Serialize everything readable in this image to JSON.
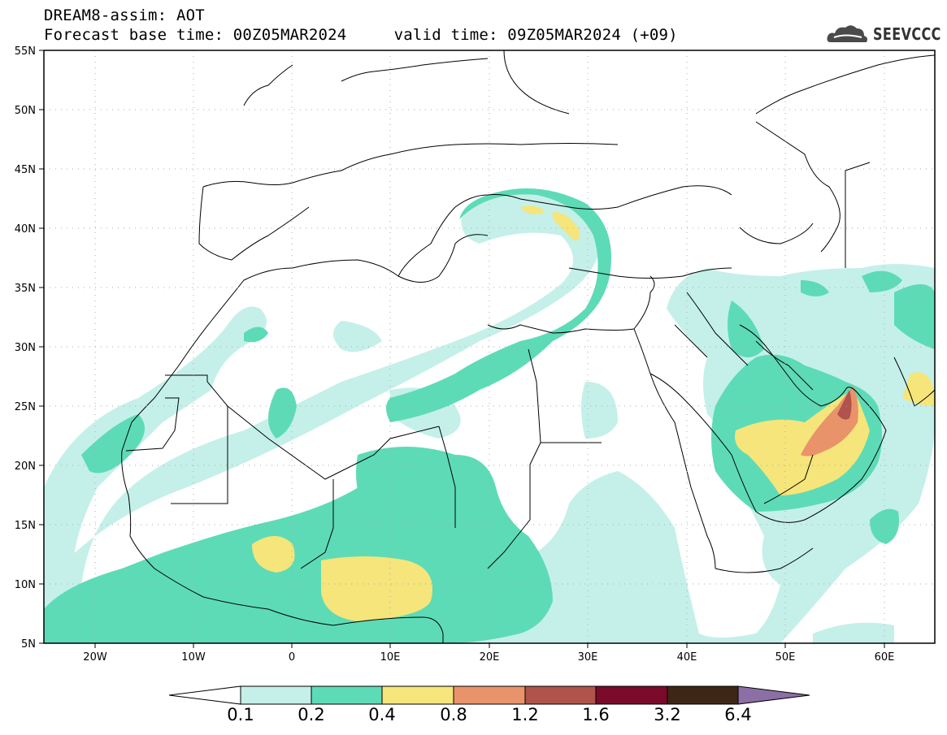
{
  "header": {
    "model_line": "DREAM8-assim: AOT",
    "forecast_line": "Forecast base time: 00Z05MAR2024     valid time: 09Z05MAR2024 (+09)",
    "logo_text": "SEEVCCC",
    "logo_icon": "cloud-icon"
  },
  "map": {
    "lat_labels": [
      "55N",
      "50N",
      "45N",
      "40N",
      "35N",
      "30N",
      "25N",
      "20N",
      "15N",
      "10N",
      "5N"
    ],
    "lon_labels": [
      "20W",
      "10W",
      "0",
      "10E",
      "20E",
      "30E",
      "40E",
      "50E",
      "60E"
    ],
    "lat_range": [
      5,
      55
    ],
    "lon_range": [
      -25,
      65
    ],
    "grid": "dotted"
  },
  "colorbar": {
    "labels": [
      "0.1",
      "0.2",
      "0.4",
      "0.8",
      "1.2",
      "1.6",
      "3.2",
      "6.4"
    ],
    "colors": [
      "#ffffff",
      "#c4f0e9",
      "#5ddbb6",
      "#f5e57a",
      "#e9936a",
      "#b0534a",
      "#7b0a2a",
      "#3e2616",
      "#8c6fa4"
    ],
    "extend": "both"
  }
}
